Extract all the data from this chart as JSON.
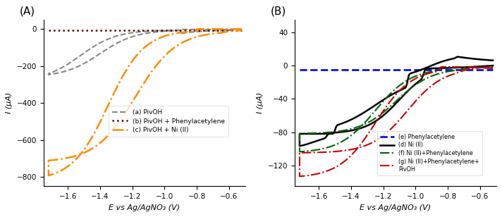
{
  "panel_A": {
    "title": "(A)",
    "xlabel": "E vs Ag/AgNO₃ (V)",
    "ylabel": "I (μA)",
    "xlim": [
      -1.75,
      -0.5
    ],
    "ylim": [
      -850,
      50
    ],
    "xticks": [
      -1.6,
      -1.4,
      -1.2,
      -1.0,
      -0.8,
      -0.6
    ],
    "yticks": [
      0,
      -200,
      -400,
      -600,
      -800
    ]
  },
  "panel_B": {
    "title": "(B)",
    "xlabel": "E vs Ag/AgNO₃ (V)",
    "ylabel": "I (μA)",
    "xlim": [
      -1.75,
      -0.5
    ],
    "ylim": [
      -145,
      55
    ],
    "xticks": [
      -1.6,
      -1.4,
      -1.2,
      -1.0,
      -0.8,
      -0.6
    ],
    "yticks": [
      40,
      0,
      -40,
      -80,
      -120
    ]
  }
}
